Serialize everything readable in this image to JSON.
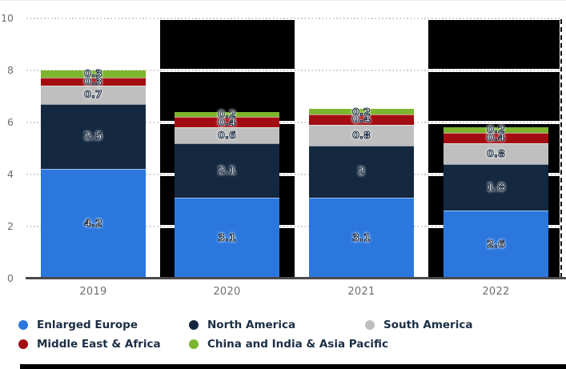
{
  "chart_data": {
    "type": "bar",
    "stacked": true,
    "title": "",
    "categories": [
      "2019",
      "2020",
      "2021",
      "2022"
    ],
    "series": [
      {
        "name": "Enlarged Europe",
        "color": "#2b77de",
        "values": [
          4.2,
          3.1,
          3.1,
          2.6
        ]
      },
      {
        "name": "North America",
        "color": "#142840",
        "values": [
          2.5,
          2.1,
          2.0,
          1.8
        ]
      },
      {
        "name": "South America",
        "color": "#bfbfbf",
        "values": [
          0.7,
          0.6,
          0.8,
          0.8
        ]
      },
      {
        "name": "Middle East & Africa",
        "color": "#a30d12",
        "values": [
          0.3,
          0.4,
          0.4,
          0.4
        ]
      },
      {
        "name": "China and India & Asia Pacific",
        "color": "#7cb52e",
        "values": [
          0.3,
          0.2,
          0.2,
          0.2
        ]
      }
    ],
    "totals": [
      8.0,
      6.4,
      6.5,
      5.8
    ],
    "ylim": [
      0,
      10
    ],
    "yticks": [
      0,
      2,
      4,
      6,
      8,
      10
    ],
    "grid": "horizontal-dotted",
    "value_labels": true,
    "legend_position": "bottom"
  },
  "style_colors": {
    "axis_tick_text": "#6f6f6f",
    "legend_text": "#1c2e44",
    "gridline": "#c9c9c9",
    "axis_line": "#4a4a4a",
    "redaction": "#000000"
  }
}
